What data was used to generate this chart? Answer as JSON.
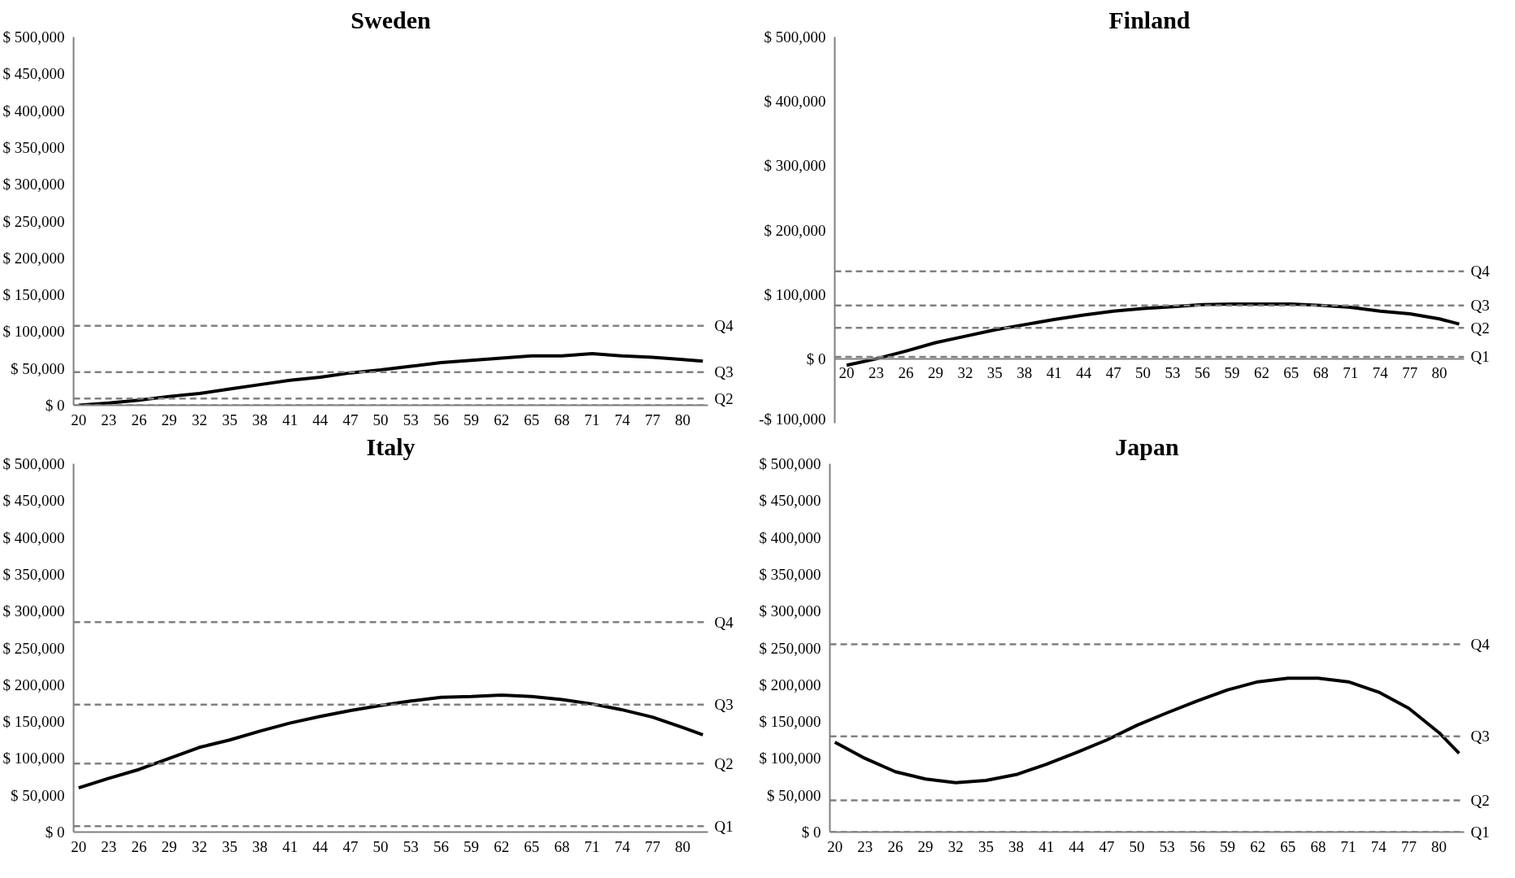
{
  "chart_data": [
    {
      "type": "line",
      "title": "Sweden",
      "x": [
        20,
        23,
        26,
        29,
        32,
        35,
        38,
        41,
        44,
        47,
        50,
        53,
        56,
        59,
        62,
        65,
        68,
        71,
        74,
        77,
        80,
        82
      ],
      "series": [
        {
          "color": "#000000",
          "values": [
            0,
            3000,
            7000,
            12000,
            16000,
            22000,
            28000,
            34000,
            38000,
            44000,
            48000,
            53000,
            58000,
            61000,
            64000,
            67000,
            67000,
            70000,
            67000,
            65000,
            62000,
            60000
          ]
        }
      ],
      "xlim": [
        19.5,
        82.5
      ],
      "xticks": [
        20,
        23,
        26,
        29,
        32,
        35,
        38,
        41,
        44,
        47,
        50,
        53,
        56,
        59,
        62,
        65,
        68,
        71,
        74,
        77,
        80
      ],
      "ylim": [
        0,
        500000
      ],
      "yticks": [
        {
          "value": 0,
          "label": "$ 0"
        },
        {
          "value": 50000,
          "label": "$ 50,000"
        },
        {
          "value": 100000,
          "label": "$ 100,000"
        },
        {
          "value": 150000,
          "label": "$ 150,000"
        },
        {
          "value": 200000,
          "label": "$ 200,000"
        },
        {
          "value": 250000,
          "label": "$ 250,000"
        },
        {
          "value": 300000,
          "label": "$ 300,000"
        },
        {
          "value": 350000,
          "label": "$ 350,000"
        },
        {
          "value": 400000,
          "label": "$ 400,000"
        },
        {
          "value": 450000,
          "label": "$ 450,000"
        },
        {
          "value": 500000,
          "label": "$ 500,000"
        }
      ],
      "ref_lines": [
        {
          "axis": "y",
          "value": 108000,
          "label": "Q4",
          "color": "#808080",
          "line_style": "dashed"
        },
        {
          "axis": "y",
          "value": 45000,
          "label": "Q3",
          "color": "#808080",
          "line_style": "dashed"
        },
        {
          "axis": "y",
          "value": 9000,
          "label": "Q2",
          "color": "#808080",
          "line_style": "dashed"
        },
        {
          "axis": "y",
          "value": 0,
          "color": "#808080",
          "line_style": "dashed"
        }
      ],
      "grid": false,
      "marker": "none",
      "line_style": "solid"
    },
    {
      "type": "line",
      "title": "Finland",
      "x": [
        20,
        23,
        26,
        29,
        32,
        35,
        38,
        41,
        44,
        47,
        50,
        53,
        56,
        59,
        62,
        65,
        68,
        71,
        74,
        77,
        80,
        82
      ],
      "series": [
        {
          "color": "#000000",
          "values": [
            -10000,
            0,
            12000,
            25000,
            35000,
            45000,
            53000,
            61000,
            68000,
            74000,
            78000,
            81000,
            84000,
            85000,
            85000,
            85000,
            83000,
            80000,
            74000,
            70000,
            62000,
            54000
          ]
        }
      ],
      "xlim": [
        18.8,
        82.5
      ],
      "xticks": [
        20,
        23,
        26,
        29,
        32,
        35,
        38,
        41,
        44,
        47,
        50,
        53,
        56,
        59,
        62,
        65,
        68,
        71,
        74,
        77,
        80
      ],
      "ylim": [
        -100000,
        500000
      ],
      "yticks": [
        {
          "value": -100000,
          "label": "-$ 100,000"
        },
        {
          "value": 0,
          "label": "$ 0"
        },
        {
          "value": 100000,
          "label": "$ 100,000"
        },
        {
          "value": 200000,
          "label": "$ 200,000"
        },
        {
          "value": 300000,
          "label": "$ 300,000"
        },
        {
          "value": 400000,
          "label": "$ 400,000"
        },
        {
          "value": 500000,
          "label": "$ 500,000"
        }
      ],
      "ref_lines": [
        {
          "axis": "y",
          "value": 136000,
          "label": "Q4",
          "color": "#808080",
          "line_style": "dashed"
        },
        {
          "axis": "y",
          "value": 83000,
          "label": "Q3",
          "color": "#808080",
          "line_style": "dashed"
        },
        {
          "axis": "y",
          "value": 48000,
          "label": "Q2",
          "color": "#808080",
          "line_style": "dashed"
        },
        {
          "axis": "y",
          "value": 3000,
          "label": "Q1",
          "color": "#808080",
          "line_style": "dashed"
        }
      ],
      "grid": false,
      "marker": "none",
      "line_style": "solid"
    },
    {
      "type": "line",
      "title": "Italy",
      "x": [
        20,
        23,
        26,
        29,
        32,
        35,
        38,
        41,
        44,
        47,
        50,
        53,
        56,
        59,
        62,
        65,
        68,
        71,
        74,
        77,
        80,
        82
      ],
      "series": [
        {
          "color": "#000000",
          "values": [
            60000,
            73000,
            85000,
            100000,
            115000,
            125000,
            137000,
            148000,
            157000,
            165000,
            172000,
            178000,
            183000,
            184000,
            186000,
            184000,
            180000,
            174000,
            166000,
            156000,
            142000,
            132000
          ]
        }
      ],
      "xlim": [
        19.5,
        82.5
      ],
      "xticks": [
        20,
        23,
        26,
        29,
        32,
        35,
        38,
        41,
        44,
        47,
        50,
        53,
        56,
        59,
        62,
        65,
        68,
        71,
        74,
        77,
        80
      ],
      "ylim": [
        0,
        500000
      ],
      "yticks": [
        {
          "value": 0,
          "label": "$ 0"
        },
        {
          "value": 50000,
          "label": "$ 50,000"
        },
        {
          "value": 100000,
          "label": "$ 100,000"
        },
        {
          "value": 150000,
          "label": "$ 150,000"
        },
        {
          "value": 200000,
          "label": "$ 200,000"
        },
        {
          "value": 250000,
          "label": "$ 250,000"
        },
        {
          "value": 300000,
          "label": "$ 300,000"
        },
        {
          "value": 350000,
          "label": "$ 350,000"
        },
        {
          "value": 400000,
          "label": "$ 400,000"
        },
        {
          "value": 450000,
          "label": "$ 450,000"
        },
        {
          "value": 500000,
          "label": "$ 500,000"
        }
      ],
      "ref_lines": [
        {
          "axis": "y",
          "value": 285000,
          "label": "Q4",
          "color": "#808080",
          "line_style": "dashed"
        },
        {
          "axis": "y",
          "value": 173000,
          "label": "Q3",
          "color": "#808080",
          "line_style": "dashed"
        },
        {
          "axis": "y",
          "value": 93000,
          "label": "Q2",
          "color": "#808080",
          "line_style": "dashed"
        },
        {
          "axis": "y",
          "value": 8000,
          "label": "Q1",
          "color": "#808080",
          "line_style": "dashed"
        }
      ],
      "grid": false,
      "marker": "none",
      "line_style": "solid"
    },
    {
      "type": "line",
      "title": "Japan",
      "x": [
        20,
        23,
        26,
        29,
        32,
        35,
        38,
        41,
        44,
        47,
        50,
        53,
        56,
        59,
        62,
        65,
        68,
        71,
        74,
        77,
        80,
        82
      ],
      "series": [
        {
          "color": "#000000",
          "values": [
            122000,
            100000,
            82000,
            72000,
            67000,
            70000,
            78000,
            92000,
            108000,
            125000,
            145000,
            162000,
            178000,
            193000,
            204000,
            209000,
            209000,
            204000,
            190000,
            168000,
            135000,
            107000
          ]
        }
      ],
      "xlim": [
        19.5,
        82.5
      ],
      "xticks": [
        20,
        23,
        26,
        29,
        32,
        35,
        38,
        41,
        44,
        47,
        50,
        53,
        56,
        59,
        62,
        65,
        68,
        71,
        74,
        77,
        80
      ],
      "ylim": [
        0,
        500000
      ],
      "yticks": [
        {
          "value": 0,
          "label": "$ 0"
        },
        {
          "value": 50000,
          "label": "$ 50,000"
        },
        {
          "value": 100000,
          "label": "$ 100,000"
        },
        {
          "value": 150000,
          "label": "$ 150,000"
        },
        {
          "value": 200000,
          "label": "$ 200,000"
        },
        {
          "value": 250000,
          "label": "$ 250,000"
        },
        {
          "value": 300000,
          "label": "$ 300,000"
        },
        {
          "value": 350000,
          "label": "$ 350,000"
        },
        {
          "value": 400000,
          "label": "$ 400,000"
        },
        {
          "value": 450000,
          "label": "$ 450,000"
        },
        {
          "value": 500000,
          "label": "$ 500,000"
        }
      ],
      "ref_lines": [
        {
          "axis": "y",
          "value": 255000,
          "label": "Q4",
          "color": "#808080",
          "line_style": "dashed"
        },
        {
          "axis": "y",
          "value": 130000,
          "label": "Q3",
          "color": "#808080",
          "line_style": "dashed"
        },
        {
          "axis": "y",
          "value": 43000,
          "label": "Q2",
          "color": "#808080",
          "line_style": "dashed"
        },
        {
          "axis": "y",
          "value": 0,
          "label": "Q1",
          "color": "#808080",
          "line_style": "dashed"
        }
      ],
      "grid": false,
      "marker": "none",
      "line_style": "solid"
    }
  ]
}
